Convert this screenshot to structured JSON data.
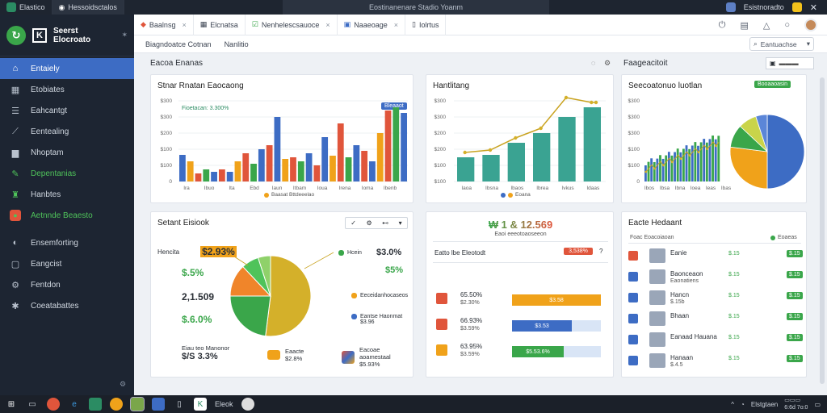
{
  "window": {
    "tabs": [
      "Elastico",
      "Hessoidsctalos"
    ],
    "title": "Eostinanenare Stadio Yoanm",
    "user": "Esistnoradto"
  },
  "brand": {
    "line1": "Seerst",
    "line2": "Elocroato"
  },
  "sidebar": {
    "items": [
      {
        "label": "Entaiely",
        "icon": "home-icon"
      },
      {
        "label": "Etobiates",
        "icon": "grid-icon"
      },
      {
        "label": "Eahcantgt",
        "icon": "list-icon"
      },
      {
        "label": "Eentealing",
        "icon": "chart-icon"
      },
      {
        "label": "Nhoptam",
        "icon": "folder-icon"
      },
      {
        "label": "Depentanias",
        "icon": "pen-icon"
      },
      {
        "label": "Hanbtes",
        "icon": "users-icon"
      },
      {
        "label": "Aetnnde Beaesto",
        "icon": "alert-icon"
      },
      {
        "label": "Ensemforting",
        "icon": "refresh-icon"
      },
      {
        "label": "Eangcist",
        "icon": "box-icon"
      },
      {
        "label": "Fentdon",
        "icon": "settings-icon"
      },
      {
        "label": "Coeatabattes",
        "icon": "star-icon"
      }
    ]
  },
  "apptabs": [
    "Baalnsg",
    "Elcnatsa",
    "Nenhelescsauoce",
    "Naaeoage",
    "Iolrtus"
  ],
  "crumbs": [
    "Biagndoatce Cotnan",
    "Nanlitio"
  ],
  "search": {
    "value": "Eantuachse"
  },
  "sections": {
    "left": "Eacoa Enanas",
    "right": "Faageacitoit"
  },
  "cards": {
    "bar": {
      "title": "Stnar Rnatan Eaocaong",
      "label": "Fioetacan: 3.300%",
      "badge": "Bleaaot",
      "legend": "Baasat Bttdeeelao",
      "ylabels": [
        "$300",
        "$300",
        "$200",
        "$100",
        "$100",
        "0"
      ],
      "xlabels": [
        "Ira",
        "Ibuo",
        "Ita",
        "Ebd",
        "Iaun",
        "Itbam",
        "Ioua",
        "Irena",
        "Ioma",
        "Ibenb"
      ]
    },
    "line": {
      "title": "Hantlitang",
      "legend": "Eoana",
      "ylabels": [
        "$300",
        "$300",
        "$200",
        "$200",
        "$100",
        "$100"
      ],
      "xlabels": [
        "Iaoa",
        "Ibsna",
        "Ibaos",
        "Ibrea",
        "Ivkus",
        "Idaas"
      ]
    },
    "trend": {
      "title": "Seecoatonuo luotlan",
      "badge": "Booaaoasin",
      "ylabels": [
        "$300",
        "$300",
        "$300",
        "$100",
        "$100",
        "0"
      ],
      "xlabels": [
        "Ibos",
        "Ibsa",
        "Ibna",
        "Ioea",
        "Ieas",
        "Ibas"
      ]
    },
    "pie1": {
      "title": "Setant Eisiook",
      "items_left": [
        {
          "label": "Hencita",
          "value": "$2.93%"
        },
        {
          "label": "",
          "value": "$.5%"
        },
        {
          "label": "",
          "value": "2,1.509"
        },
        {
          "label": "",
          "value": "$.6.0%"
        }
      ],
      "items_right": [
        {
          "label": "Hcein",
          "value": "$3.0%"
        },
        {
          "label": "",
          "value": "$5%"
        },
        {
          "label": "Eeceidanhocaseos",
          "value": ""
        },
        {
          "label": "Eantse Haonmat",
          "value": "$3.96"
        }
      ],
      "bottom": [
        {
          "label": "Eiau teo Manonor",
          "value": "$/S 3.3%"
        },
        {
          "label": "Eaacte",
          "value": "$2.8%"
        },
        {
          "label": "Eacoae aoamestaal",
          "value": "$5.93%"
        }
      ]
    },
    "stats": {
      "headline": "₩ 1 & 12.569",
      "sub": "Eaoi eeeotoaoseeon",
      "row_title": "Eatto lbe Eleotodt",
      "badge": "3,538%",
      "rows": [
        {
          "v1": "65.50%",
          "v2": "$2.30%",
          "bar": "$3.58",
          "color": "#f0a21a"
        },
        {
          "v1": "66.93%",
          "v2": "$3.59%",
          "bar": "$3.53",
          "color": "#3d6cc4"
        },
        {
          "v1": "63.95%",
          "v2": "$3.59%",
          "bar": "$5.53.6%",
          "color": "#3aa64a"
        }
      ]
    },
    "list": {
      "title": "Eacte Hedaant",
      "col1": "Foac Eoacoiaoan",
      "col2": "Eoaeas",
      "rows": [
        {
          "name": "Eanie",
          "sub": "",
          "v": "$.15",
          "badge": "$.15"
        },
        {
          "name": "Baonceaon",
          "sub": "Eaonatiens",
          "v": "$.15",
          "badge": "$.15"
        },
        {
          "name": "Hancn",
          "sub": "$.15b",
          "v": "$.15",
          "badge": "$.15"
        },
        {
          "name": "Bhaan",
          "sub": "",
          "v": "$.15",
          "badge": "$.15"
        },
        {
          "name": "Eanaad Hauana",
          "sub": "",
          "v": "$.15",
          "badge": "$.15"
        },
        {
          "name": "Hanaan",
          "sub": "$.4.5",
          "v": "$.15",
          "badge": "$.15"
        }
      ]
    }
  },
  "taskbar": {
    "label": "Eleok",
    "time": "Elstgtaen",
    "date": "6:6d 7o:0"
  }
}
